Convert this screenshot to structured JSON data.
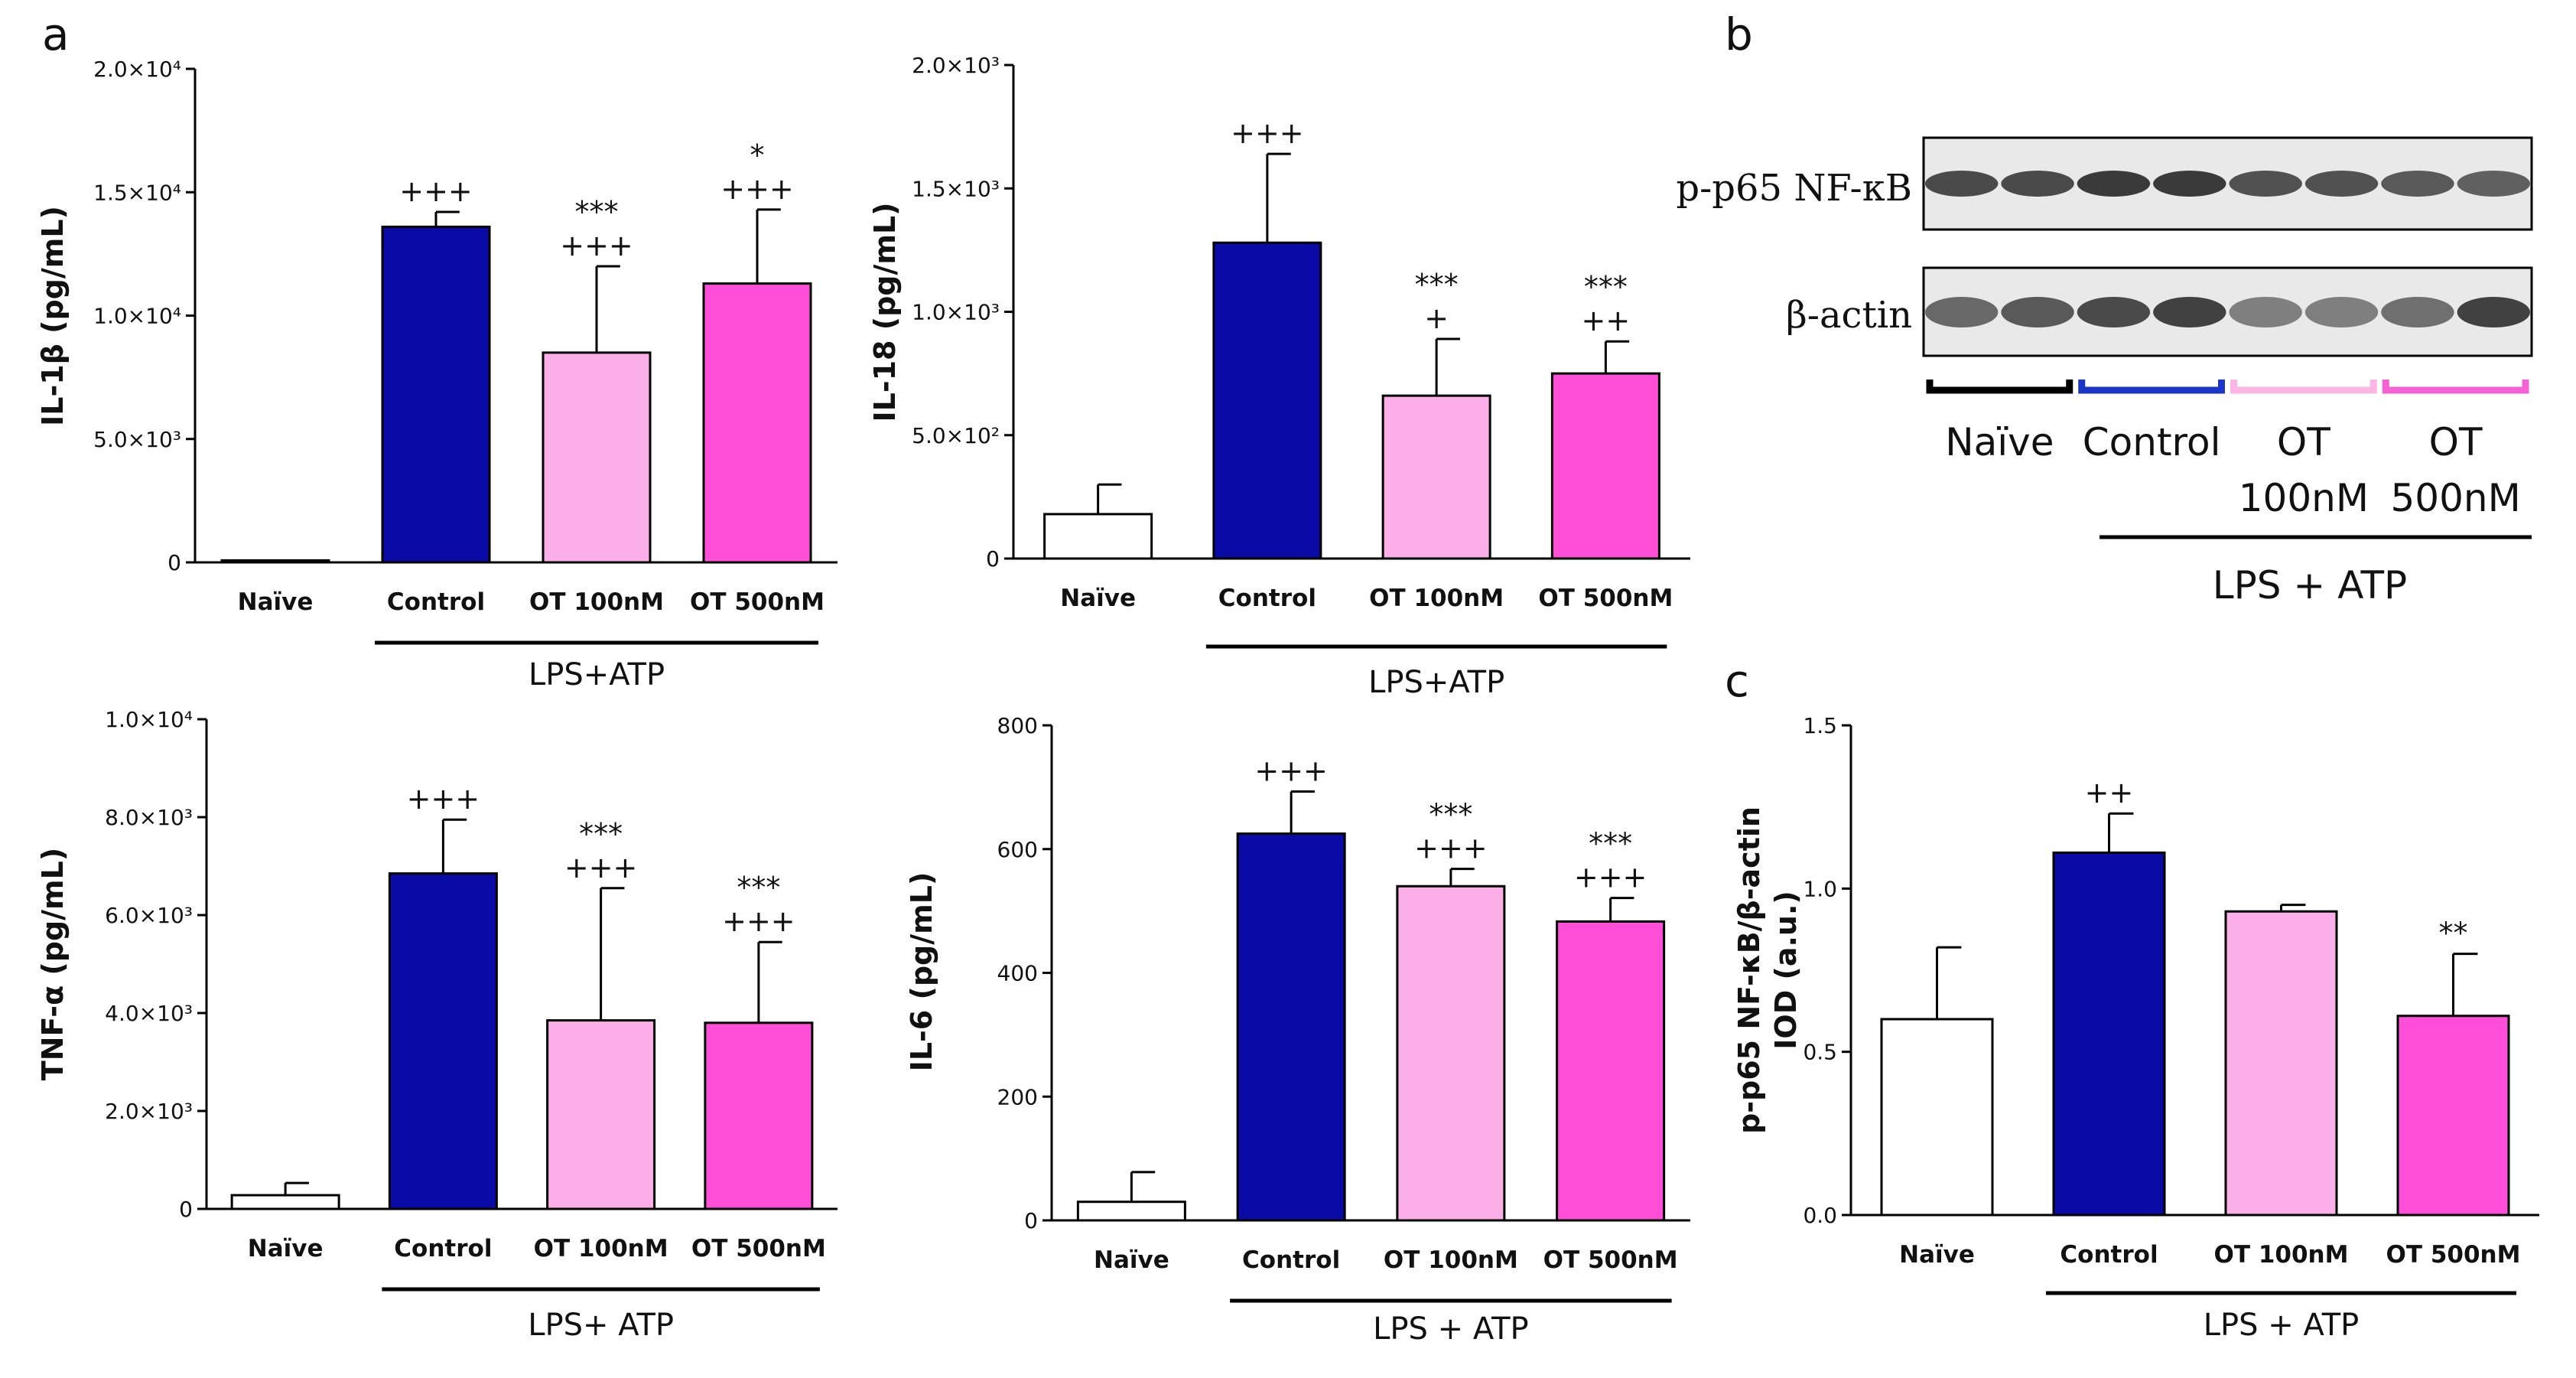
{
  "panel_letters": [
    "a",
    "b",
    "c"
  ],
  "colors": {
    "naive": "#ffffff",
    "control": "#0a0aa6",
    "ot100": "#fcaee8",
    "ot500": "#ff4fd8",
    "axis": "#000000"
  },
  "chart_data": [
    {
      "type": "bar",
      "ylabel": "IL-1β (pg/mL)",
      "categories": [
        "Naïve",
        "Control",
        "OT 100nM",
        "OT 500nM"
      ],
      "group_label": "LPS+ATP",
      "values": [
        80,
        13600,
        8500,
        11300
      ],
      "errors": [
        0,
        600,
        3500,
        3000
      ],
      "significance": [
        [],
        [
          "+++"
        ],
        [
          "***",
          "+++"
        ],
        [
          "*",
          "+++"
        ]
      ],
      "ylim": [
        0,
        20000
      ],
      "yticks": [
        0,
        5000,
        10000,
        15000,
        20000
      ],
      "ytick_labels": [
        "0",
        "5.0×10³",
        "1.0×10⁴",
        "1.5×10⁴",
        "2.0×10⁴"
      ]
    },
    {
      "type": "bar",
      "ylabel": "IL-18 (pg/mL)",
      "categories": [
        "Naïve",
        "Control",
        "OT 100nM",
        "OT 500nM"
      ],
      "group_label": "LPS+ATP",
      "values": [
        180,
        1280,
        660,
        750
      ],
      "errors": [
        120,
        360,
        230,
        130
      ],
      "significance": [
        [],
        [
          "+++"
        ],
        [
          "***",
          "+"
        ],
        [
          "***",
          "++"
        ]
      ],
      "ylim": [
        0,
        2000
      ],
      "yticks": [
        0,
        500,
        1000,
        1500,
        2000
      ],
      "ytick_labels": [
        "0",
        "5.0×10²",
        "1.0×10³",
        "1.5×10³",
        "2.0×10³"
      ]
    },
    {
      "type": "bar",
      "ylabel": "TNF-α (pg/mL)",
      "categories": [
        "Naïve",
        "Control",
        "OT 100nM",
        "OT 500nM"
      ],
      "group_label": "LPS+ ATP",
      "values": [
        280,
        6850,
        3850,
        3800
      ],
      "errors": [
        250,
        1100,
        2700,
        1650
      ],
      "significance": [
        [],
        [
          "+++"
        ],
        [
          "***",
          "+++"
        ],
        [
          "***",
          "+++"
        ]
      ],
      "ylim": [
        0,
        10000
      ],
      "yticks": [
        0,
        2000,
        4000,
        6000,
        8000,
        10000
      ],
      "ytick_labels": [
        "0",
        "2.0×10³",
        "4.0×10³",
        "6.0×10³",
        "8.0×10³",
        "1.0×10⁴"
      ]
    },
    {
      "type": "bar",
      "ylabel": "IL-6 (pg/mL)",
      "categories": [
        "Naïve",
        "Control",
        "OT 100nM",
        "OT 500nM"
      ],
      "group_label": "LPS + ATP",
      "values": [
        30,
        625,
        540,
        483
      ],
      "errors": [
        48,
        68,
        28,
        38
      ],
      "significance": [
        [],
        [
          "+++"
        ],
        [
          "***",
          "+++"
        ],
        [
          "***",
          "+++"
        ]
      ],
      "ylim": [
        0,
        800
      ],
      "yticks": [
        0,
        200,
        400,
        600,
        800
      ],
      "ytick_labels": [
        "0",
        "200",
        "400",
        "600",
        "800"
      ]
    },
    {
      "type": "bar",
      "ylabel": "p-p65 NF-κB/β-actin",
      "ylabel2": "IOD (a.u.)",
      "categories": [
        "Naïve",
        "Control",
        "OT 100nM",
        "OT 500nM"
      ],
      "group_label": "LPS + ATP",
      "values": [
        0.6,
        1.11,
        0.93,
        0.61
      ],
      "errors": [
        0.22,
        0.12,
        0.02,
        0.19
      ],
      "significance": [
        [],
        [
          "++"
        ],
        [],
        [
          "**"
        ]
      ],
      "ylim": [
        0,
        1.5
      ],
      "yticks": [
        0,
        0.5,
        1.0,
        1.5
      ],
      "ytick_labels": [
        "0.0",
        "0.5",
        "1.0",
        "1.5"
      ]
    }
  ],
  "blot": {
    "rows": [
      "p-p65 NF-κB",
      "β-actin"
    ],
    "lanes": [
      "Naïve",
      "Control",
      "OT",
      "OT"
    ],
    "lane_sub": [
      "",
      "",
      "100nM",
      "500nM"
    ],
    "group_label": "LPS + ATP",
    "bracket_colors": [
      "#000000",
      "#1a35c8",
      "#fbb6e6",
      "#f562d6"
    ]
  }
}
